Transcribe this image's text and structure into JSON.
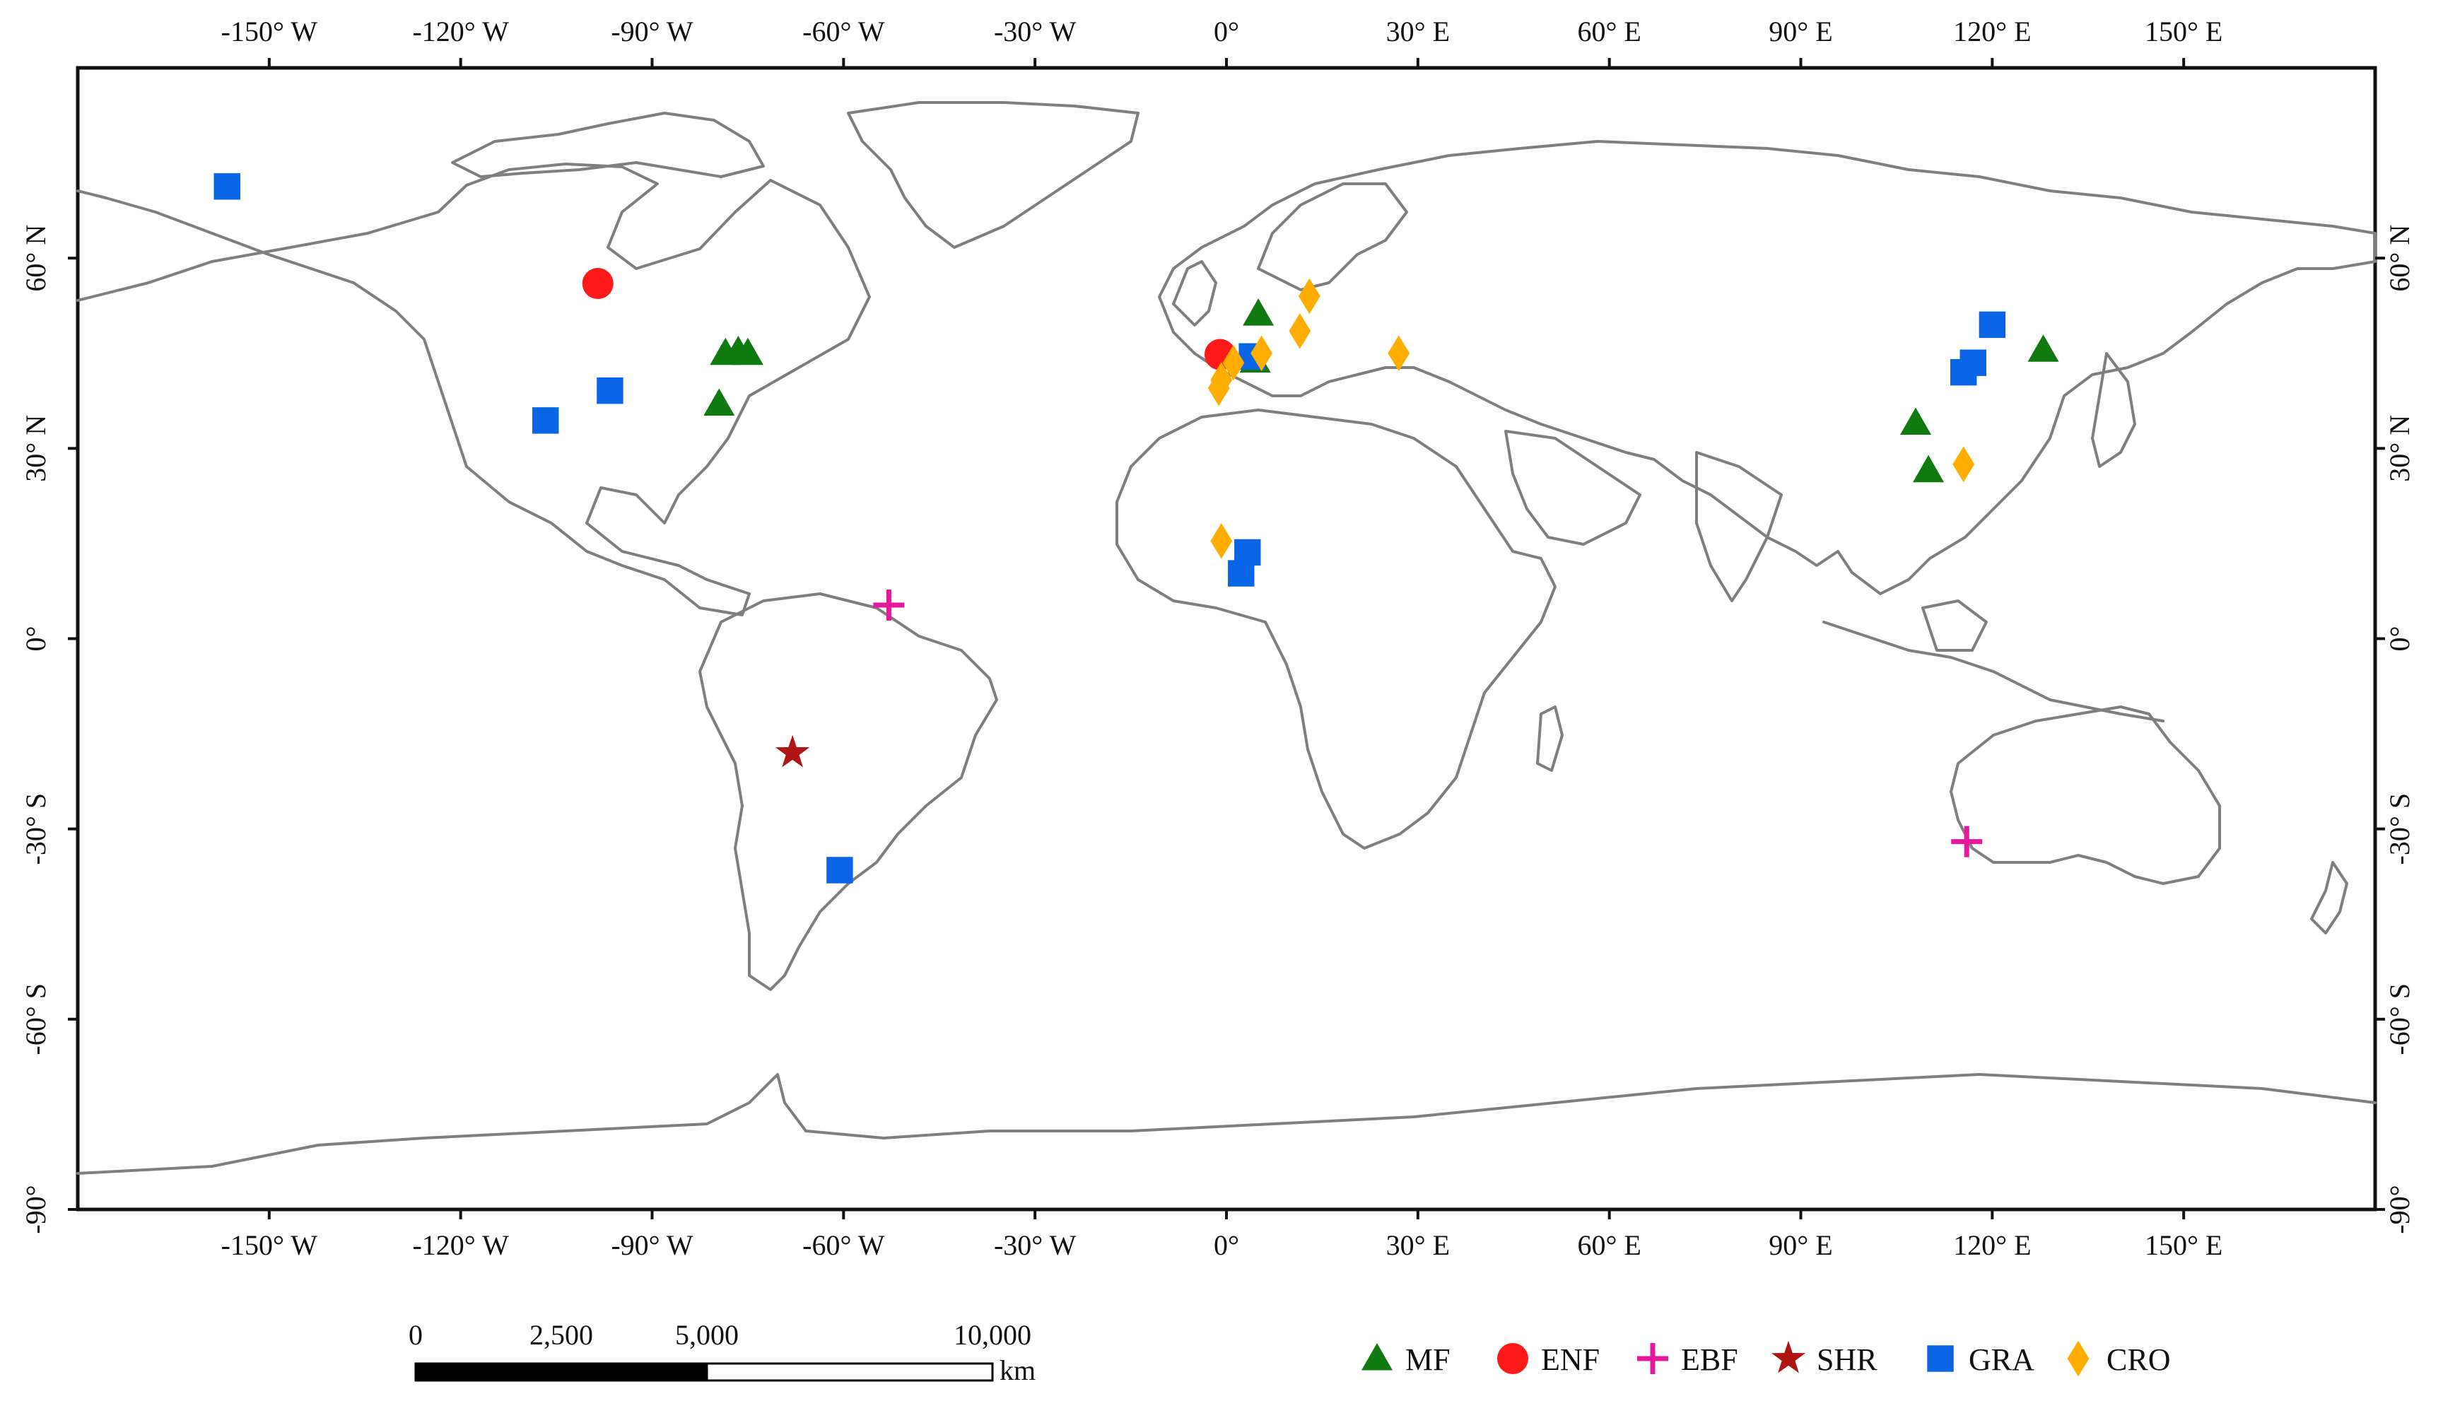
{
  "map": {
    "top_lon_labels": [
      "-150° W",
      "-120° W",
      "-90° W",
      "-60° W",
      "-30° W",
      "0°",
      "30° E",
      "60° E",
      "90° E",
      "120° E",
      "150° E"
    ],
    "bottom_lon_labels": [
      "-150° W",
      "-120° W",
      "-90° W",
      "-60° W",
      "-30° W",
      "0°",
      "30° E",
      "60° E",
      "90° E",
      "120° E",
      "150° E"
    ],
    "lon_values": [
      -150,
      -120,
      -90,
      -60,
      -30,
      0,
      30,
      60,
      90,
      120,
      150
    ],
    "left_lat_labels": [
      "60° N",
      "30° N",
      "0°",
      "-30° S",
      "-60° S",
      "-90°"
    ],
    "right_lat_labels": [
      "60° N",
      "30° N",
      "0°",
      "-30° S",
      "-60° S",
      "-90°"
    ],
    "lat_values": [
      60,
      30,
      0,
      -30,
      -60,
      -90
    ],
    "lon_range": [
      -180,
      180
    ],
    "lat_range": [
      -90,
      90
    ]
  },
  "scale_bar": {
    "labels": [
      "0",
      "2,500",
      "5,000",
      "10,000"
    ],
    "distances_km": [
      0,
      2500,
      5000,
      10000
    ],
    "unit": "km"
  },
  "legend": {
    "items": [
      {
        "key": "MF",
        "label": "MF",
        "shape": "triangle",
        "color": "#0f7a0f"
      },
      {
        "key": "ENF",
        "label": "ENF",
        "shape": "circle",
        "color": "#ff1a1a"
      },
      {
        "key": "EBF",
        "label": "EBF",
        "shape": "cross",
        "color": "#e6199e"
      },
      {
        "key": "SHR",
        "label": "SHR",
        "shape": "star",
        "color": "#b01515"
      },
      {
        "key": "GRA",
        "label": "GRA",
        "shape": "square",
        "color": "#0a64e6"
      },
      {
        "key": "CRO",
        "label": "CRO",
        "shape": "diamond",
        "color": "#ffae00"
      }
    ]
  },
  "sites": [
    {
      "type": "GRA",
      "lon": -156.6,
      "lat": 71.3
    },
    {
      "type": "ENF",
      "lon": -98.5,
      "lat": 56.0
    },
    {
      "type": "GRA",
      "lon": -96.6,
      "lat": 39.1
    },
    {
      "type": "GRA",
      "lon": -106.7,
      "lat": 34.4
    },
    {
      "type": "MF",
      "lon": -78.5,
      "lat": 45.0
    },
    {
      "type": "MF",
      "lon": -76.5,
      "lat": 45.3
    },
    {
      "type": "MF",
      "lon": -75.0,
      "lat": 45.0
    },
    {
      "type": "MF",
      "lon": -79.5,
      "lat": 37.0
    },
    {
      "type": "EBF",
      "lon": -52.9,
      "lat": 5.3
    },
    {
      "type": "SHR",
      "lon": -68.0,
      "lat": -18.0
    },
    {
      "type": "GRA",
      "lon": -60.6,
      "lat": -36.5
    },
    {
      "type": "MF",
      "lon": 5.0,
      "lat": 51.2
    },
    {
      "type": "ENF",
      "lon": -1.0,
      "lat": 44.8
    },
    {
      "type": "MF",
      "lon": 4.5,
      "lat": 43.8
    },
    {
      "type": "GRA",
      "lon": 4.0,
      "lat": 44.5
    },
    {
      "type": "CRO",
      "lon": 1.1,
      "lat": 43.5
    },
    {
      "type": "CRO",
      "lon": 5.5,
      "lat": 45.0
    },
    {
      "type": "CRO",
      "lon": -1.2,
      "lat": 39.5
    },
    {
      "type": "CRO",
      "lon": -0.8,
      "lat": 40.8
    },
    {
      "type": "CRO",
      "lon": 13.0,
      "lat": 54.0
    },
    {
      "type": "CRO",
      "lon": 11.5,
      "lat": 48.5
    },
    {
      "type": "CRO",
      "lon": 27.0,
      "lat": 45.0
    },
    {
      "type": "CRO",
      "lon": -0.8,
      "lat": 15.4
    },
    {
      "type": "GRA",
      "lon": 3.3,
      "lat": 13.6
    },
    {
      "type": "GRA",
      "lon": 2.3,
      "lat": 10.3
    },
    {
      "type": "MF",
      "lon": 108.0,
      "lat": 34.0
    },
    {
      "type": "MF",
      "lon": 110.0,
      "lat": 26.5
    },
    {
      "type": "CRO",
      "lon": 115.5,
      "lat": 27.5
    },
    {
      "type": "GRA",
      "lon": 115.5,
      "lat": 42.0
    },
    {
      "type": "GRA",
      "lon": 117.0,
      "lat": 43.5
    },
    {
      "type": "GRA",
      "lon": 120.0,
      "lat": 49.5
    },
    {
      "type": "MF",
      "lon": 128.0,
      "lat": 45.5
    },
    {
      "type": "EBF",
      "lon": 116.0,
      "lat": -32.0
    }
  ]
}
